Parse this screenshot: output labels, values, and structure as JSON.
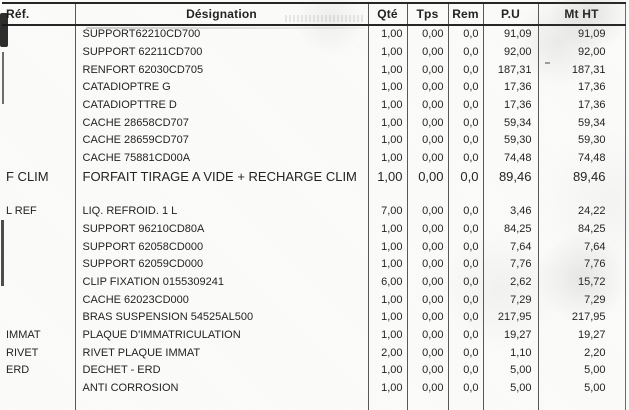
{
  "colors": {
    "ink": "#232323",
    "grid_line": "#585858"
  },
  "table": {
    "columns": [
      {
        "key": "ref",
        "label": "Réf."
      },
      {
        "key": "designation",
        "label": "Désignation"
      },
      {
        "key": "qty",
        "label": "Qté"
      },
      {
        "key": "tps",
        "label": "Tps"
      },
      {
        "key": "rem",
        "label": "Rem"
      },
      {
        "key": "pu",
        "label": "P.U"
      },
      {
        "key": "mt",
        "label": "Mt HT"
      }
    ],
    "rows": [
      {
        "ref": "",
        "designation": "SUPPORT62210CD700",
        "qty": "1,00",
        "tps": "0,00",
        "rem": "0,0",
        "pu": "91,09",
        "mt": "91,09",
        "size": "normal",
        "blank": false
      },
      {
        "ref": "",
        "designation": "SUPPORT 62211CD700",
        "qty": "1,00",
        "tps": "0,00",
        "rem": "0,0",
        "pu": "92,00",
        "mt": "92,00",
        "size": "normal",
        "blank": false
      },
      {
        "ref": "",
        "designation": "RENFORT 62030CD705",
        "qty": "1,00",
        "tps": "0,00",
        "rem": "0,0",
        "pu": "187,31",
        "mt": "187,31",
        "size": "normal",
        "blank": false
      },
      {
        "ref": "",
        "designation": "CATADIOPTRE G",
        "qty": "1,00",
        "tps": "0,00",
        "rem": "0,0",
        "pu": "17,36",
        "mt": "17,36",
        "size": "normal",
        "blank": false
      },
      {
        "ref": "",
        "designation": "CATADIOPTTRE D",
        "qty": "1,00",
        "tps": "0,00",
        "rem": "0,0",
        "pu": "17,36",
        "mt": "17,36",
        "size": "normal",
        "blank": false
      },
      {
        "ref": "",
        "designation": "CACHE 28658CD707",
        "qty": "1,00",
        "tps": "0,00",
        "rem": "0,0",
        "pu": "59,34",
        "mt": "59,34",
        "size": "normal",
        "blank": false
      },
      {
        "ref": "",
        "designation": "CACHE 28659CD707",
        "qty": "1,00",
        "tps": "0,00",
        "rem": "0,0",
        "pu": "59,30",
        "mt": "59,30",
        "size": "normal",
        "blank": false
      },
      {
        "ref": "",
        "designation": "CACHE 75881CD00A",
        "qty": "1,00",
        "tps": "0,00",
        "rem": "0,0",
        "pu": "74,48",
        "mt": "74,48",
        "size": "normal",
        "blank": false
      },
      {
        "ref": "F CLIM",
        "designation": "FORFAIT TIRAGE A VIDE + RECHARGE CLIM",
        "qty": "1,00",
        "tps": "0,00",
        "rem": "0,0",
        "pu": "89,46",
        "mt": "89,46",
        "size": "large",
        "blank": false
      },
      {
        "ref": "",
        "designation": "",
        "qty": "",
        "tps": "",
        "rem": "",
        "pu": "",
        "mt": "",
        "size": "normal",
        "blank": true
      },
      {
        "ref": "L REF",
        "designation": "LIQ. REFROID. 1 L",
        "qty": "7,00",
        "tps": "0,00",
        "rem": "0,0",
        "pu": "3,46",
        "mt": "24,22",
        "size": "normal",
        "blank": false
      },
      {
        "ref": "",
        "designation": "SUPPORT 96210CD80A",
        "qty": "1,00",
        "tps": "0,00",
        "rem": "0,0",
        "pu": "84,25",
        "mt": "84,25",
        "size": "normal",
        "blank": false
      },
      {
        "ref": "",
        "designation": "SUPPORT 62058CD000",
        "qty": "1,00",
        "tps": "0,00",
        "rem": "0,0",
        "pu": "7,64",
        "mt": "7,64",
        "size": "normal",
        "blank": false
      },
      {
        "ref": "",
        "designation": "SUPPORT 62059CD000",
        "qty": "1,00",
        "tps": "0,00",
        "rem": "0,0",
        "pu": "7,76",
        "mt": "7,76",
        "size": "normal",
        "blank": false
      },
      {
        "ref": "",
        "designation": "CLIP FIXATION 0155309241",
        "qty": "6,00",
        "tps": "0,00",
        "rem": "0,0",
        "pu": "2,62",
        "mt": "15,72",
        "size": "normal",
        "blank": false
      },
      {
        "ref": "",
        "designation": "CACHE 62023CD000",
        "qty": "1,00",
        "tps": "0,00",
        "rem": "0,0",
        "pu": "7,29",
        "mt": "7,29",
        "size": "normal",
        "blank": false
      },
      {
        "ref": "",
        "designation": "BRAS SUSPENSION 54525AL500",
        "qty": "1,00",
        "tps": "0,00",
        "rem": "0,0",
        "pu": "217,95",
        "mt": "217,95",
        "size": "normal",
        "blank": false
      },
      {
        "ref": "IMMAT",
        "designation": "PLAQUE D'IMMATRICULATION",
        "qty": "1,00",
        "tps": "0,00",
        "rem": "0,0",
        "pu": "19,27",
        "mt": "19,27",
        "size": "normal",
        "blank": false
      },
      {
        "ref": "RIVET",
        "designation": "RIVET PLAQUE IMMAT",
        "qty": "2,00",
        "tps": "0,00",
        "rem": "0,0",
        "pu": "1,10",
        "mt": "2,20",
        "size": "normal",
        "blank": false
      },
      {
        "ref": "ERD",
        "designation": "DECHET - ERD",
        "qty": "1,00",
        "tps": "0,00",
        "rem": "0,0",
        "pu": "5,00",
        "mt": "5,00",
        "size": "normal",
        "blank": false
      },
      {
        "ref": "",
        "designation": "ANTI CORROSION",
        "qty": "1,00",
        "tps": "0,00",
        "rem": "0,0",
        "pu": "5,00",
        "mt": "5,00",
        "size": "normal",
        "blank": false
      }
    ]
  }
}
